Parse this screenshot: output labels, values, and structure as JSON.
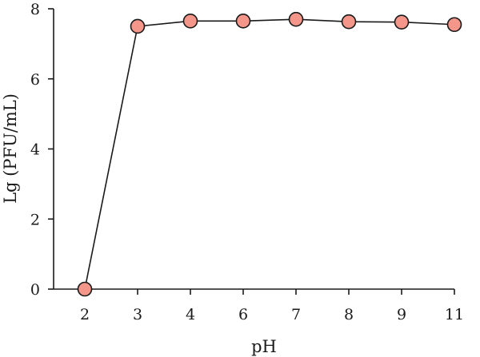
{
  "chart_data": {
    "type": "line",
    "categories": [
      "2",
      "3",
      "4",
      "6",
      "7",
      "8",
      "9",
      "11"
    ],
    "series": [
      {
        "values": [
          0,
          7.5,
          7.65,
          7.65,
          7.7,
          7.63,
          7.62,
          7.55
        ]
      }
    ],
    "xlabel": "pH",
    "ylabel": "Lg (PFU/mL)",
    "ylim": [
      0,
      8
    ],
    "yticks": [
      0,
      2,
      4,
      6,
      8
    ],
    "grid": false,
    "legend": "none",
    "marker_color": "#f4968a",
    "line_color": "#1a1a1a"
  }
}
